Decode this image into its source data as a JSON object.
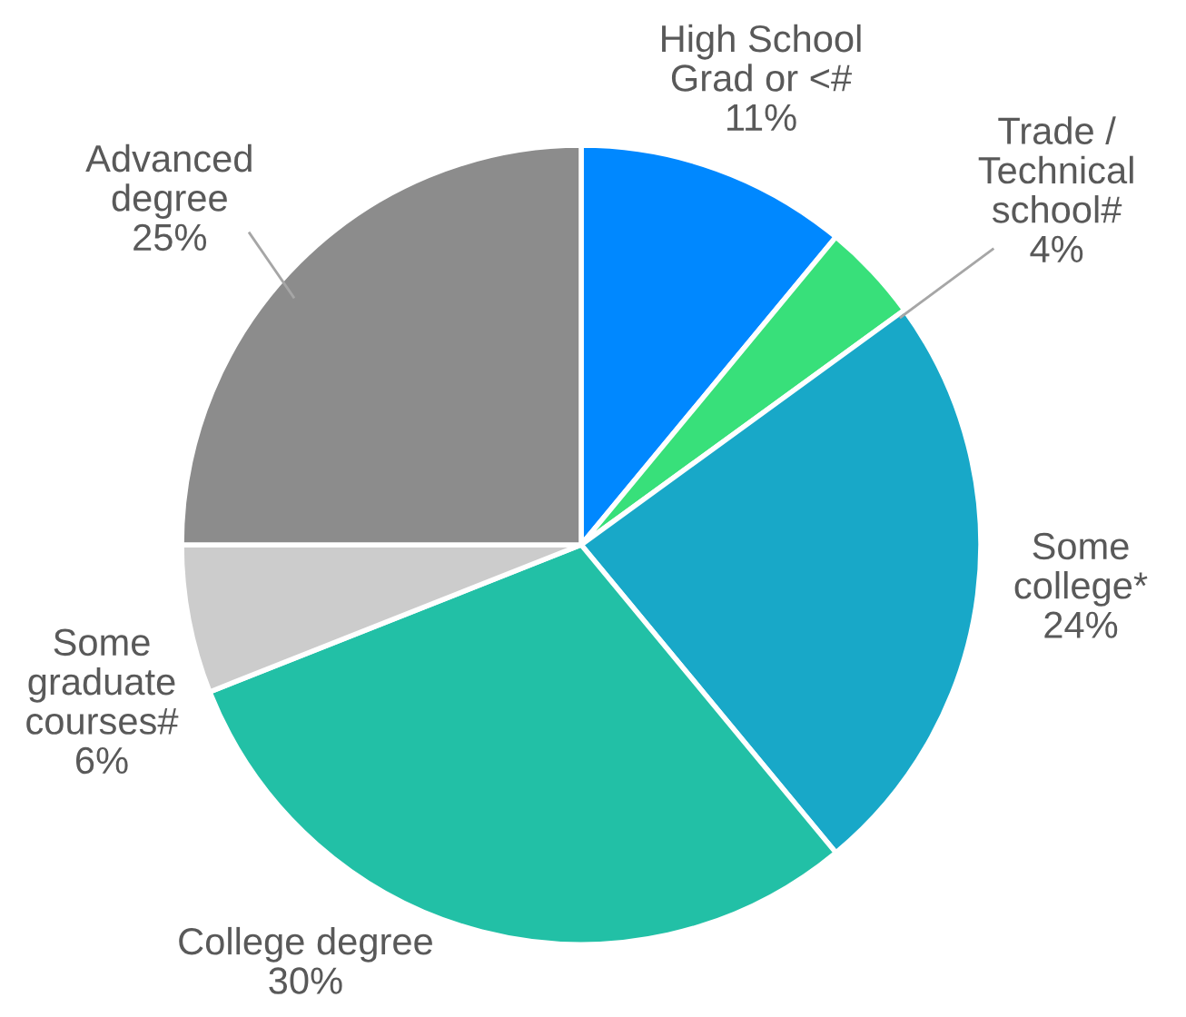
{
  "chart_data": {
    "type": "pie",
    "categories": [
      "High School\nGrad or <#",
      "Trade /\nTechnical\nschool#",
      "Some\ncollege*",
      "College degree",
      "Some\ngraduate\ncourses#",
      "Advanced\ndegree"
    ],
    "values": [
      11,
      4,
      24,
      30,
      6,
      25
    ],
    "colors": [
      "#0088ff",
      "#38e07a",
      "#18a8c8",
      "#22c0a6",
      "#cccccc",
      "#8c8c8c"
    ],
    "value_labels": [
      "11%",
      "4%",
      "24%",
      "30%",
      "6%",
      "25%"
    ]
  }
}
